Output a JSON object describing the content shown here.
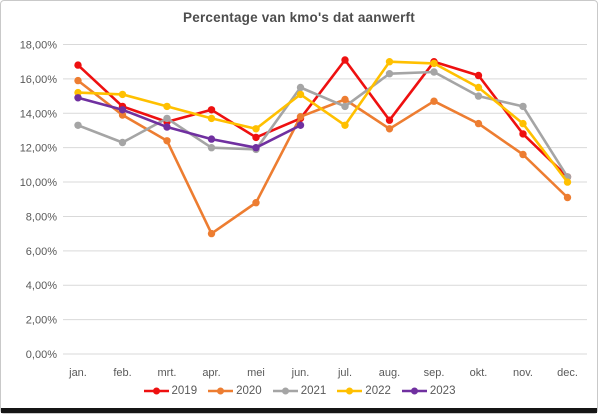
{
  "chart_data": {
    "type": "line",
    "title": "Percentage van kmo's dat aanwerft",
    "categories": [
      "jan.",
      "feb.",
      "mrt.",
      "apr.",
      "mei",
      "jun.",
      "jul.",
      "aug.",
      "sep.",
      "okt.",
      "nov.",
      "dec."
    ],
    "series": [
      {
        "name": "2019",
        "color": "#EE1010",
        "values": [
          16.8,
          14.4,
          13.5,
          14.2,
          12.6,
          13.7,
          17.1,
          13.6,
          17.0,
          16.2,
          12.8,
          10.3
        ]
      },
      {
        "name": "2020",
        "color": "#ED7D31",
        "values": [
          15.9,
          13.9,
          12.4,
          7.0,
          8.8,
          13.8,
          14.8,
          13.1,
          14.7,
          13.4,
          11.6,
          9.1
        ]
      },
      {
        "name": "2021",
        "color": "#A5A5A5",
        "values": [
          13.3,
          12.3,
          13.7,
          12.0,
          11.9,
          15.5,
          14.4,
          16.3,
          16.4,
          15.0,
          14.4,
          10.3
        ]
      },
      {
        "name": "2022",
        "color": "#FFC000",
        "values": [
          15.2,
          15.1,
          14.4,
          13.7,
          13.1,
          15.1,
          13.3,
          17.0,
          16.9,
          15.5,
          13.4,
          10.0
        ]
      },
      {
        "name": "2023",
        "color": "#7030A0",
        "values": [
          14.9,
          14.2,
          13.2,
          12.5,
          12.0,
          13.3,
          null,
          null,
          null,
          null,
          null,
          null
        ]
      }
    ],
    "ylim": [
      0,
      18
    ],
    "ytick_step": 2,
    "y_tick_labels": [
      "18,00%",
      "16,00%",
      "14,00%",
      "12,00%",
      "10,00%",
      "8,00%",
      "6,00%",
      "4,00%",
      "2,00%",
      "0,00%"
    ],
    "grid": true,
    "legend_position": "bottom",
    "text_color": "#595959",
    "grid_color": "#D9D9D9"
  }
}
